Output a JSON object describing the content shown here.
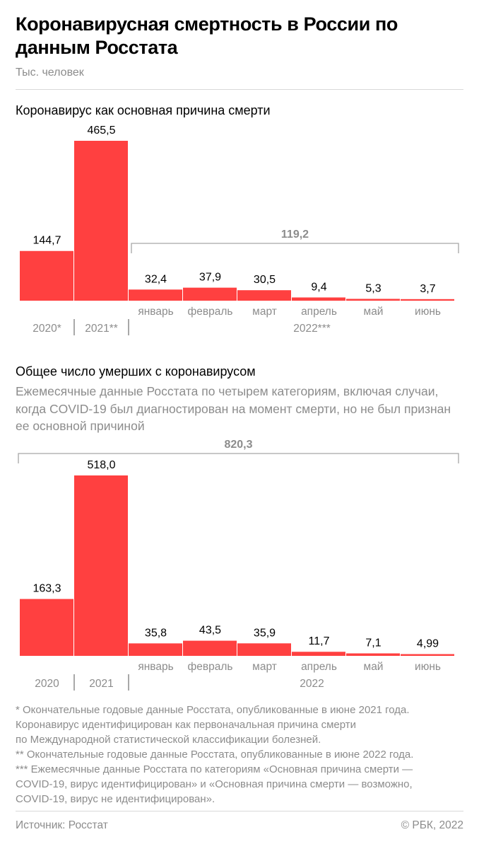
{
  "title": "Коронавирусная смертность в России по данным Росстата",
  "unit": "Тыс. человек",
  "colors": {
    "bar": "#ff4040",
    "muted": "#8c8c8c",
    "bracket": "#a6a6a6",
    "axis": "#6f6f6f"
  },
  "footnotes": [
    "* Окончательные годовые данные Росстата, опубликованные в июне 2021 года.",
    "Коронавирус идентифицирован как первоначальная причина смерти",
    "по Международной статистической классификации болезней.",
    "** Окончательные годовые данные Росстата, опубликованные в июне 2022 года.",
    "*** Ежемесячные данные Росстата по категориям «Основная причина смерти —",
    "COVID-19, вирус идентифицирован» и «Основная причина смерти — возможно,",
    "COVID-19, вирус не идентифицирован»."
  ],
  "source": "Источник: Росстат",
  "copyright": "© РБК, 2022",
  "chart_data": [
    {
      "type": "bar",
      "title": "Коронавирус как основная причина смерти",
      "categories": [
        "",
        "",
        "январь",
        "февраль",
        "март",
        "апрель",
        "май",
        "июнь"
      ],
      "values": [
        144.7,
        465.5,
        32.4,
        37.9,
        30.5,
        9.4,
        5.3,
        3.7
      ],
      "value_labels": [
        "144,7",
        "465,5",
        "32,4",
        "37,9",
        "30,5",
        "9,4",
        "5,3",
        "3,7"
      ],
      "groups": [
        "2020*",
        "2021**",
        "2022***"
      ],
      "bracket_label": "119,2",
      "ylim": [
        0,
        465.5
      ]
    },
    {
      "type": "bar",
      "title": "Общее число умерших с коронавирусом",
      "subtitle": "Ежемесячные данные Росстата по четырем категориям, включая случаи, когда COVID-19 был диагностирован на момент смерти, но не был признан ее основной причиной",
      "categories": [
        "",
        "",
        "январь",
        "февраль",
        "март",
        "апрель",
        "май",
        "июнь"
      ],
      "values": [
        163.3,
        518.0,
        35.8,
        43.5,
        35.9,
        11.7,
        7.1,
        4.99
      ],
      "value_labels": [
        "163,3",
        "518,0",
        "35,8",
        "43,5",
        "35,9",
        "11,7",
        "7,1",
        "4,99"
      ],
      "groups": [
        "2020",
        "2021",
        "2022"
      ],
      "bracket_label": "820,3",
      "ylim": [
        0,
        518.0
      ]
    }
  ]
}
